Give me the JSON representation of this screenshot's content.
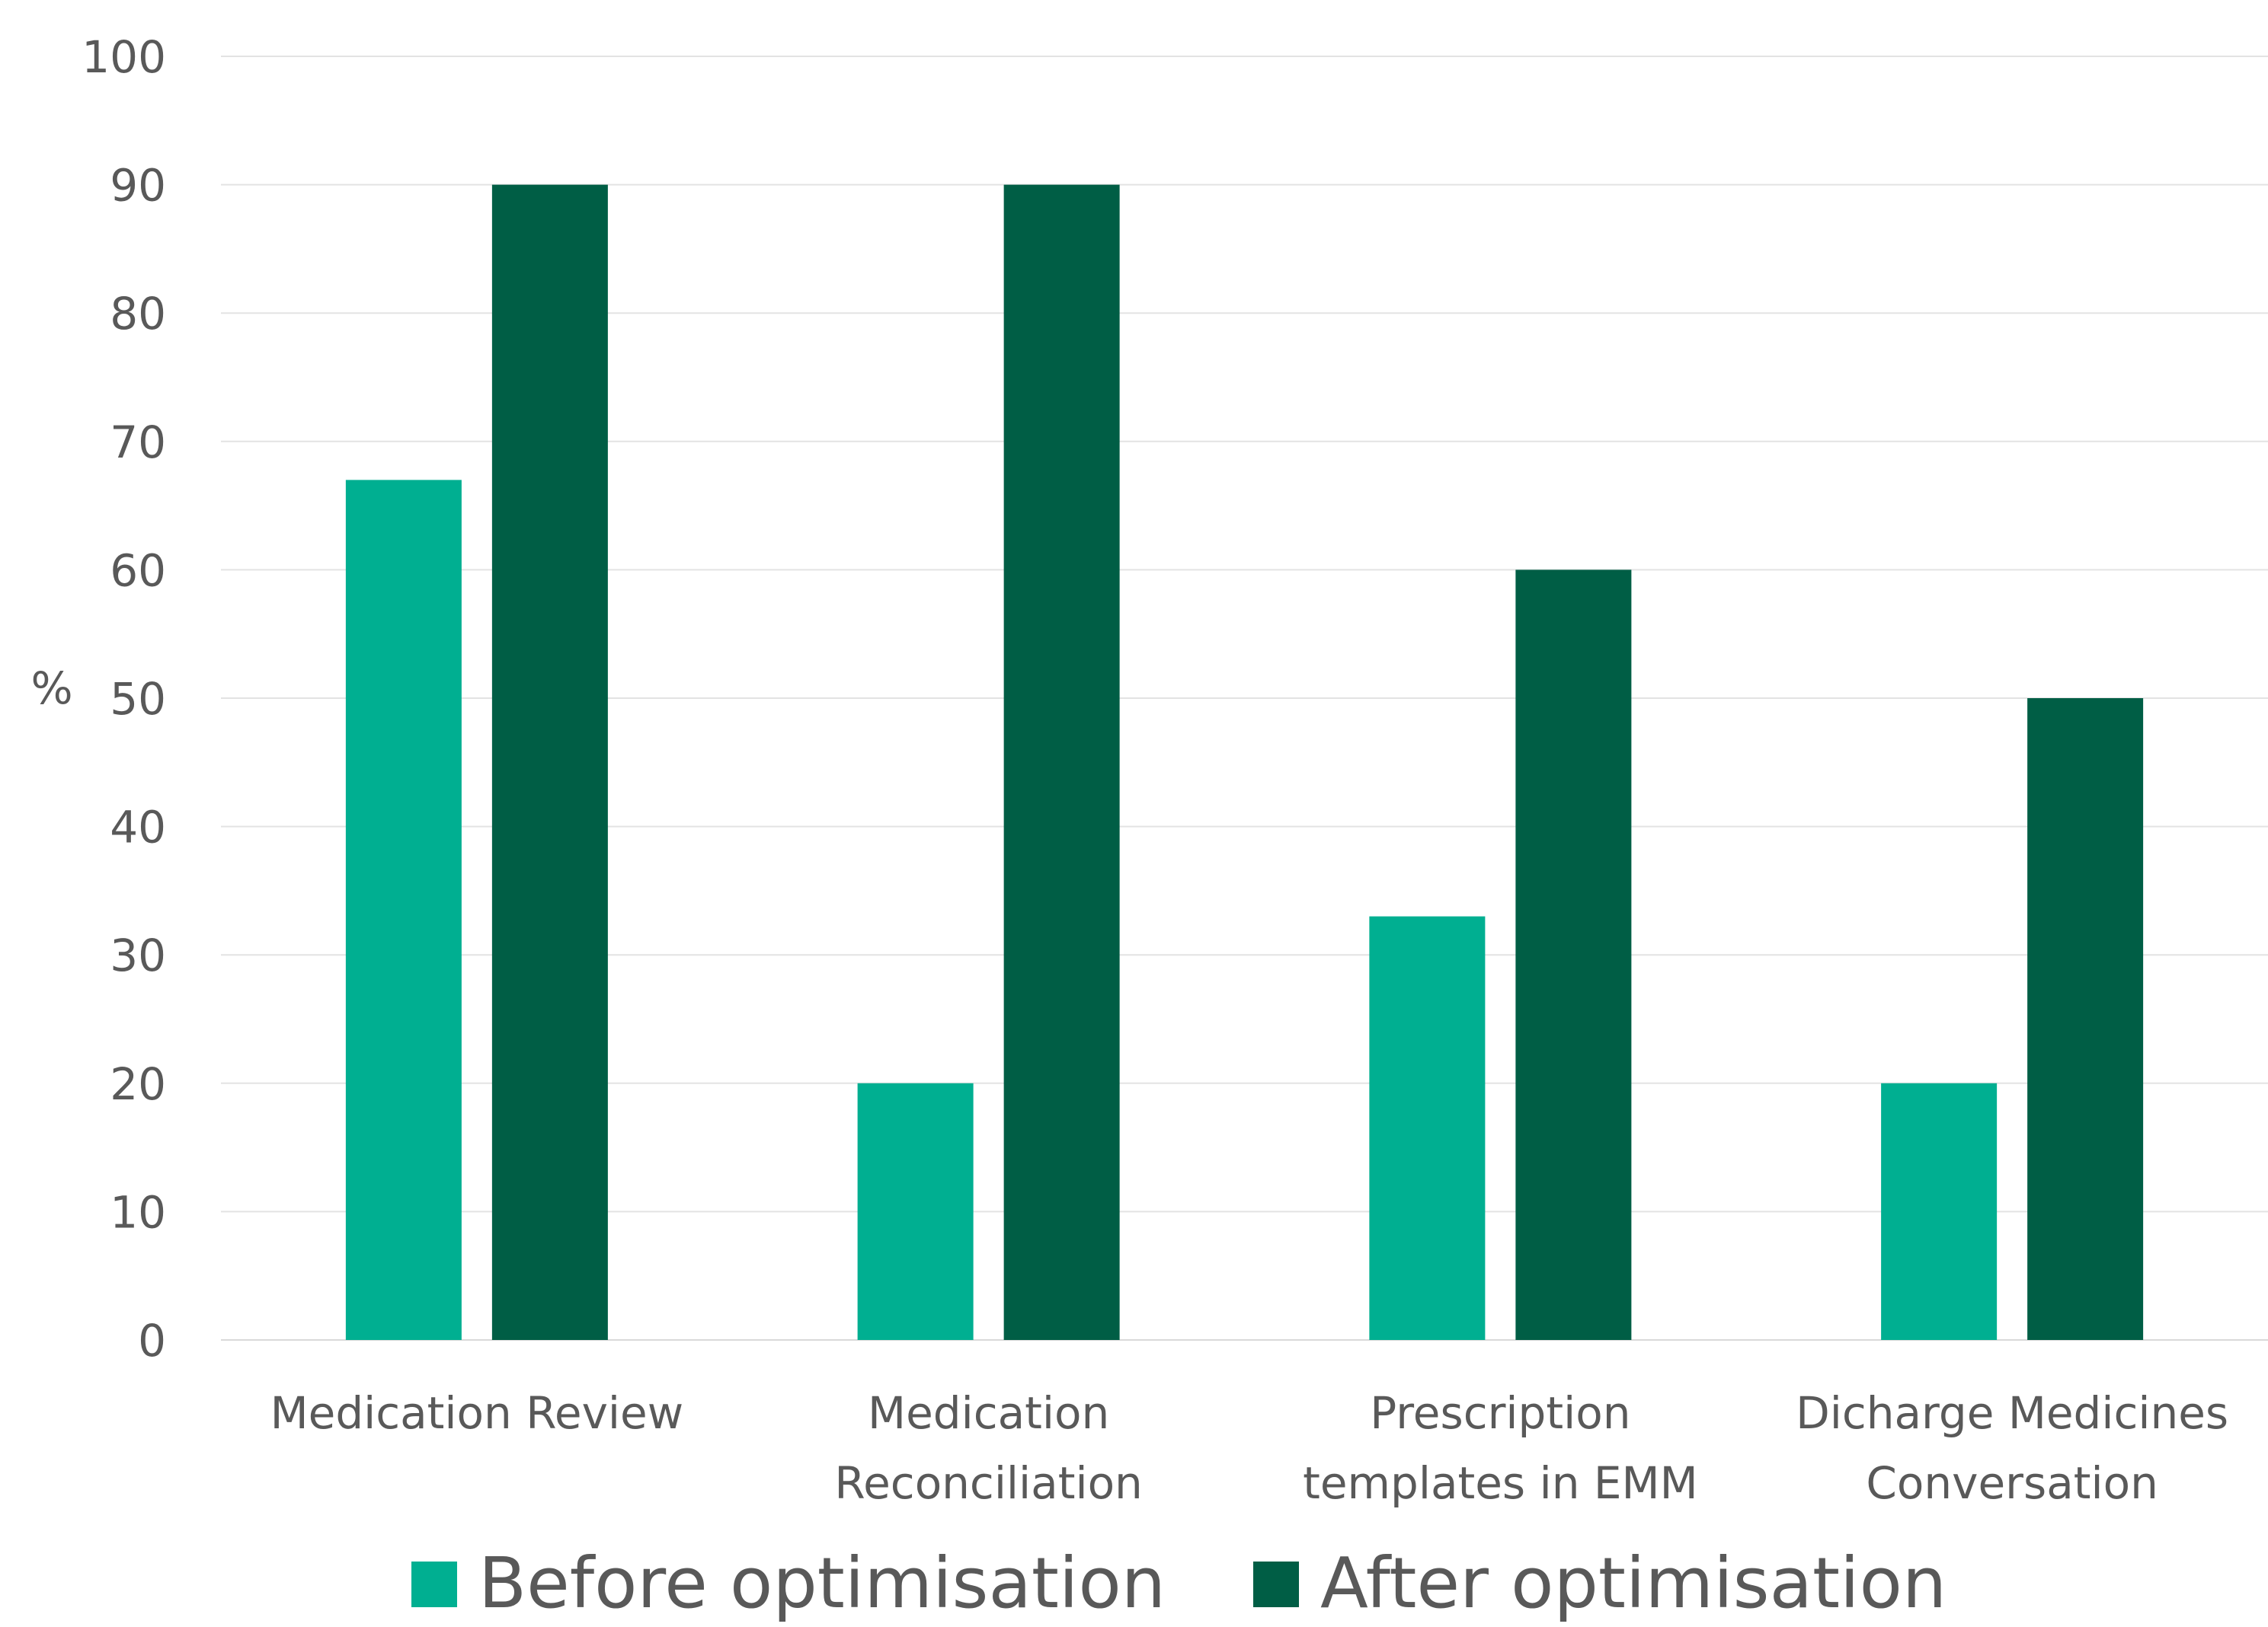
{
  "chart_data": {
    "type": "bar",
    "title": "",
    "xlabel": "",
    "ylabel": "%",
    "ylim": [
      0,
      100
    ],
    "yticks": [
      "0",
      "10",
      "20",
      "30",
      "40",
      "50",
      "60",
      "70",
      "80",
      "90",
      "100"
    ],
    "grid": true,
    "legend_position": "bottom",
    "categories": [
      [
        "Medication Review"
      ],
      [
        "Medication",
        "Reconciliation"
      ],
      [
        "Prescription",
        "templates in EMM"
      ],
      [
        "Dicharge Medicines",
        "Conversation"
      ]
    ],
    "series": [
      {
        "name": "Before optimisation",
        "color": "#00AF91",
        "values": [
          67,
          20,
          33,
          20
        ]
      },
      {
        "name": "After optimisation",
        "color": "#005E45",
        "values": [
          90,
          90,
          60,
          50
        ]
      }
    ]
  }
}
